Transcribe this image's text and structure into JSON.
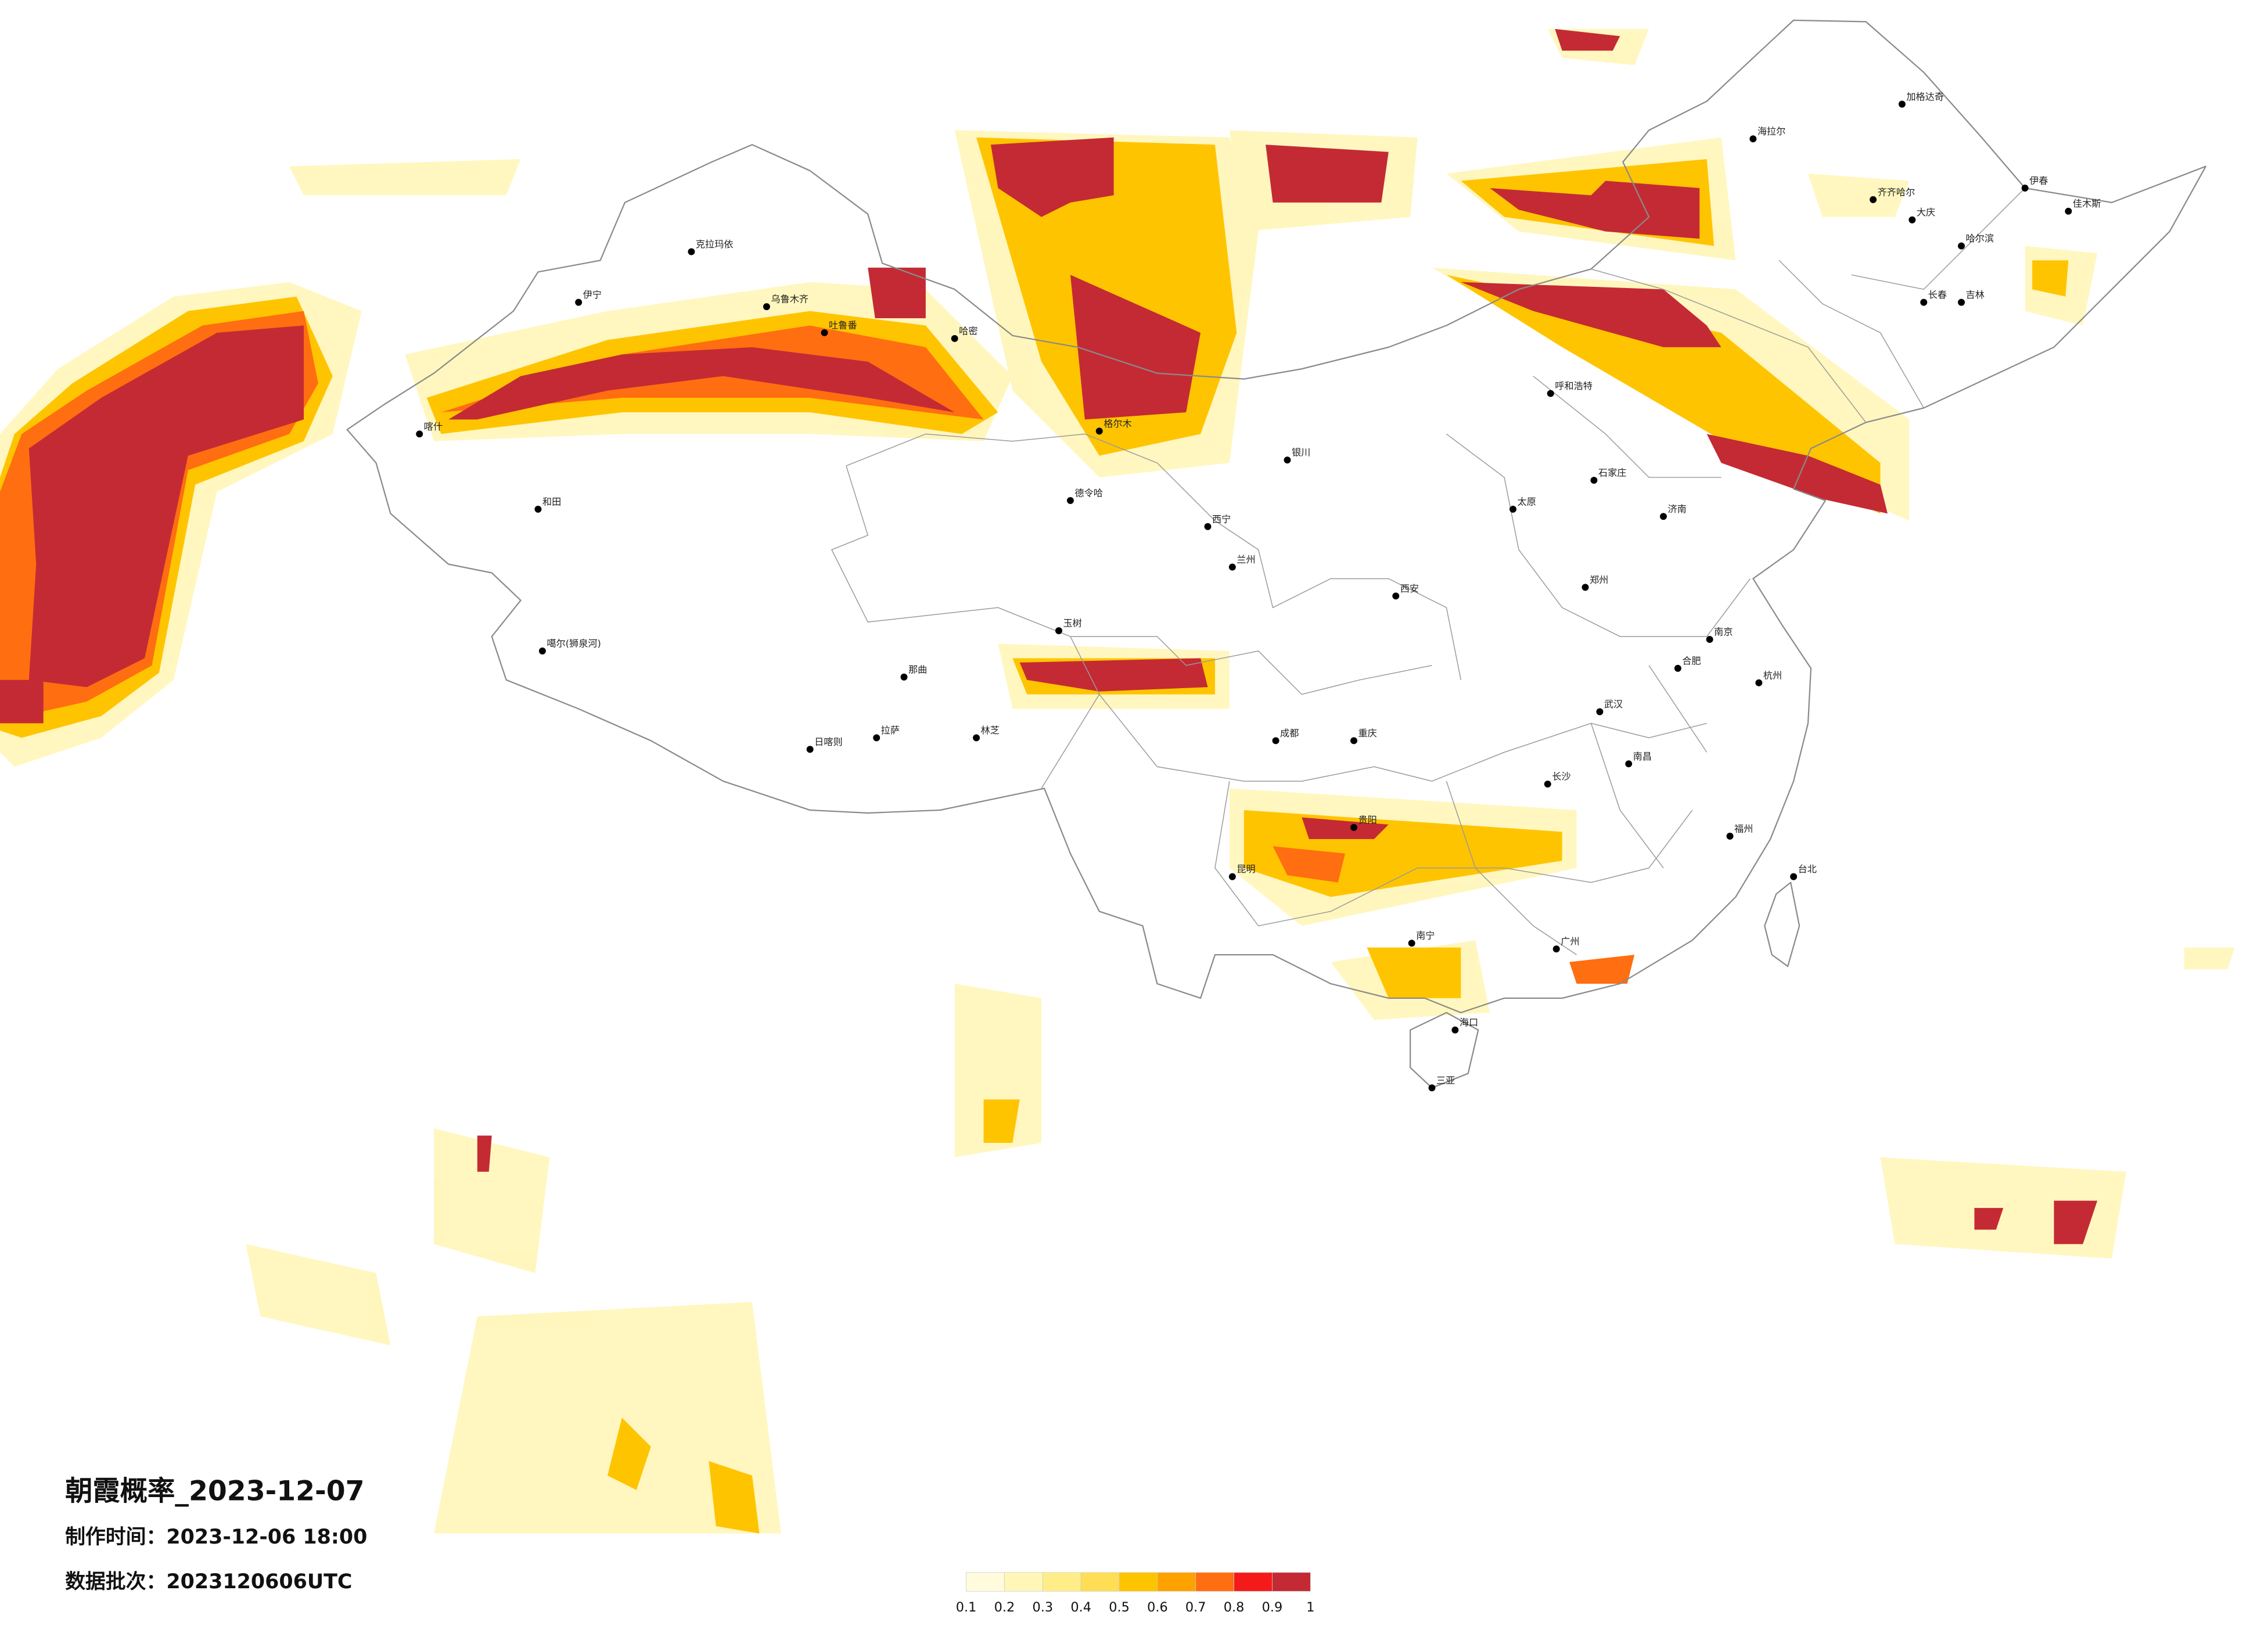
{
  "title": "朝霞概率_2023-12-07",
  "made_time": "制作时间：2023-12-06 18:00",
  "batch": "数据批次：2023120606UTC",
  "legend": {
    "colors": [
      "#fffbdc",
      "#fff6b8",
      "#ffee88",
      "#ffdd55",
      "#ffc400",
      "#ffa200",
      "#ff6e10",
      "#f51a1a",
      "#c42a34"
    ],
    "ticks": [
      0.1,
      0.2,
      0.3,
      0.4,
      0.5,
      0.6,
      0.7,
      0.8,
      0.9,
      1
    ]
  },
  "cities": [
    "加格达奇",
    "海拉尔",
    "齐齐哈尔",
    "大庆",
    "伊春",
    "佳木斯",
    "哈尔滨",
    "长春",
    "吉林",
    "克拉玛依",
    "伊宁",
    "乌鲁木齐",
    "吐鲁番",
    "哈密",
    "喀什",
    "和田",
    "格尔木",
    "德令哈",
    "噶尔(狮泉河)",
    "那曲",
    "玉树",
    "拉萨",
    "日喀则",
    "林芝",
    "西宁",
    "兰州",
    "银川",
    "呼和浩特",
    "太原",
    "石家庄",
    "济南",
    "郑州",
    "西安",
    "成都",
    "重庆",
    "贵阳",
    "昆明",
    "南宁",
    "广州",
    "长沙",
    "武汉",
    "南昌",
    "合肥",
    "南京",
    "杭州",
    "福州",
    "台北",
    "海口",
    "三亚"
  ]
}
